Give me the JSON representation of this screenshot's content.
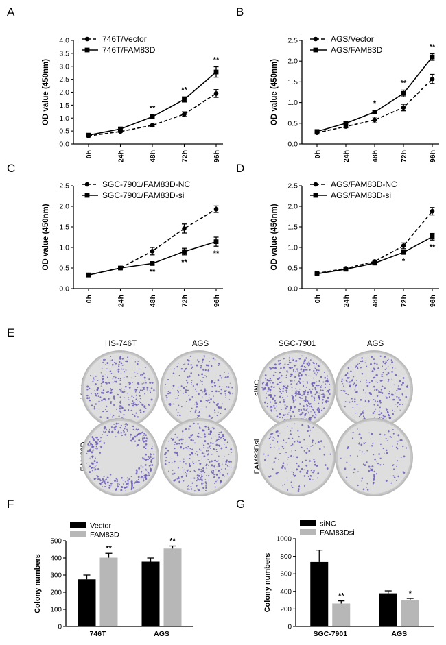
{
  "panels": {
    "A": "A",
    "B": "B",
    "C": "C",
    "D": "D",
    "E": "E",
    "F": "F",
    "G": "G"
  },
  "colors": {
    "ink": "#000000",
    "grayBar": "#b7b7b7",
    "dishRim": "#b9b9b9",
    "dishFill": "#dedede",
    "colony": "#6a5bb8"
  },
  "chart_data": [
    {
      "id": "A",
      "type": "line",
      "ylabel": "OD value (450nm)",
      "categories": [
        "0h",
        "24h",
        "48h",
        "72h",
        "96h"
      ],
      "ylim": [
        0,
        4.0
      ],
      "yticks": [
        0,
        0.5,
        1.0,
        1.5,
        2.0,
        2.5,
        3.0,
        3.5,
        4.0
      ],
      "ytick_labels": [
        "0.0",
        "0.5",
        "1.0",
        "1.5",
        "2.0",
        "2.5",
        "3.0",
        "3.5",
        "4.0"
      ],
      "legend_position": "top-left",
      "series": [
        {
          "name": "746T/Vector",
          "dashed": true,
          "marker": "circle",
          "values": [
            0.31,
            0.48,
            0.72,
            1.15,
            1.95
          ],
          "errors": [
            0.03,
            0.03,
            0.04,
            0.09,
            0.15
          ]
        },
        {
          "name": "746T/FAM83D",
          "dashed": false,
          "marker": "square",
          "values": [
            0.34,
            0.58,
            1.05,
            1.72,
            2.78
          ],
          "errors": [
            0.03,
            0.05,
            0.05,
            0.1,
            0.2
          ]
        }
      ],
      "significance": [
        "",
        "",
        "**",
        "**",
        "**"
      ]
    },
    {
      "id": "B",
      "type": "line",
      "ylabel": "OD value (450nm)",
      "categories": [
        "0h",
        "24h",
        "48h",
        "72h",
        "96h"
      ],
      "ylim": [
        0,
        2.5
      ],
      "yticks": [
        0,
        0.5,
        1.0,
        1.5,
        2.0,
        2.5
      ],
      "ytick_labels": [
        "0.0",
        "0.5",
        "1.0",
        "1.5",
        "2.0",
        "2.5"
      ],
      "legend_position": "top-left",
      "series": [
        {
          "name": "AGS/Vector",
          "dashed": true,
          "marker": "circle",
          "values": [
            0.27,
            0.42,
            0.58,
            0.88,
            1.57
          ],
          "errors": [
            0.03,
            0.03,
            0.07,
            0.08,
            0.11
          ]
        },
        {
          "name": "AGS/FAM83D",
          "dashed": false,
          "marker": "square",
          "values": [
            0.3,
            0.5,
            0.77,
            1.22,
            2.1
          ],
          "errors": [
            0.03,
            0.04,
            0.04,
            0.08,
            0.08
          ]
        }
      ],
      "significance": [
        "",
        "",
        "*",
        "**",
        "**"
      ]
    },
    {
      "id": "C",
      "type": "line",
      "ylabel": "OD value (450nm)",
      "categories": [
        "0h",
        "24h",
        "48h",
        "72h",
        "96h"
      ],
      "ylim": [
        0,
        2.5
      ],
      "yticks": [
        0,
        0.5,
        1.0,
        1.5,
        2.0,
        2.5
      ],
      "ytick_labels": [
        "0.0",
        "0.5",
        "1.0",
        "1.5",
        "2.0",
        "2.5"
      ],
      "legend_position": "top-left",
      "series": [
        {
          "name": "SGC-7901/FAM83D-NC",
          "dashed": true,
          "marker": "circle",
          "values": [
            0.33,
            0.5,
            0.91,
            1.46,
            1.93
          ],
          "errors": [
            0.02,
            0.03,
            0.09,
            0.11,
            0.08
          ]
        },
        {
          "name": "SGC-7901/FAM83D-si",
          "dashed": false,
          "marker": "square",
          "values": [
            0.33,
            0.5,
            0.61,
            0.9,
            1.14
          ],
          "errors": [
            0.02,
            0.03,
            0.03,
            0.08,
            0.11
          ]
        }
      ],
      "significance": [
        "",
        "",
        "**",
        "**",
        "**"
      ]
    },
    {
      "id": "D",
      "type": "line",
      "ylabel": "OD value (450nm)",
      "categories": [
        "0h",
        "24h",
        "48h",
        "72h",
        "96h"
      ],
      "ylim": [
        0,
        2.5
      ],
      "yticks": [
        0,
        0.5,
        1.0,
        1.5,
        2.0,
        2.5
      ],
      "ytick_labels": [
        "0.0",
        "0.5",
        "1.0",
        "1.5",
        "2.0",
        "2.5"
      ],
      "legend_position": "top-left",
      "series": [
        {
          "name": "AGS/FAM83D-NC",
          "dashed": true,
          "marker": "circle",
          "values": [
            0.37,
            0.49,
            0.66,
            1.04,
            1.88
          ],
          "errors": [
            0.02,
            0.03,
            0.03,
            0.07,
            0.09
          ]
        },
        {
          "name": "AGS/FAM83D-si",
          "dashed": false,
          "marker": "square",
          "values": [
            0.36,
            0.47,
            0.62,
            0.88,
            1.26
          ],
          "errors": [
            0.02,
            0.03,
            0.03,
            0.04,
            0.08
          ]
        }
      ],
      "significance": [
        "",
        "",
        "",
        "*",
        "**"
      ]
    },
    {
      "id": "F",
      "type": "bar",
      "ylabel": "Colony numbers",
      "categories": [
        "746T",
        "AGS"
      ],
      "ylim": [
        0,
        500
      ],
      "yticks": [
        0,
        100,
        200,
        300,
        400,
        500
      ],
      "ytick_labels": [
        "0",
        "100",
        "200",
        "300",
        "400",
        "500"
      ],
      "legend_position": "top-left",
      "series": [
        {
          "name": "Vector",
          "color": "#000000",
          "values": [
            275,
            378
          ],
          "errors": [
            25,
            22
          ]
        },
        {
          "name": "FAM83D",
          "color": "#b7b7b7",
          "values": [
            402,
            455
          ],
          "errors": [
            25,
            15
          ]
        }
      ],
      "significance": [
        [
          "",
          "**"
        ],
        [
          "",
          "**"
        ]
      ]
    },
    {
      "id": "G",
      "type": "bar",
      "ylabel": "Colony numbers",
      "categories": [
        "SGC-7901",
        "AGS"
      ],
      "ylim": [
        0,
        1000
      ],
      "yticks": [
        0,
        200,
        400,
        600,
        800,
        1000
      ],
      "ytick_labels": [
        "0",
        "200",
        "400",
        "600",
        "800",
        "1000"
      ],
      "legend_position": "top-left",
      "series": [
        {
          "name": "siNC",
          "color": "#000000",
          "values": [
            735,
            378
          ],
          "errors": [
            135,
            28
          ]
        },
        {
          "name": "FAM83Dsi",
          "color": "#b7b7b7",
          "values": [
            262,
            298
          ],
          "errors": [
            30,
            22
          ]
        }
      ],
      "significance": [
        [
          "",
          "**"
        ],
        [
          "",
          "*"
        ]
      ]
    }
  ],
  "dishes": {
    "left_titles": [
      "HS-746T",
      "AGS"
    ],
    "right_titles": [
      "SGC-7901",
      "AGS"
    ],
    "left_rows": [
      "Vector",
      "FAM83D"
    ],
    "right_rows": [
      "siNC",
      "FAM83Dsi"
    ],
    "density": [
      [
        260,
        200,
        420,
        230
      ],
      [
        300,
        300,
        140,
        110
      ]
    ]
  }
}
